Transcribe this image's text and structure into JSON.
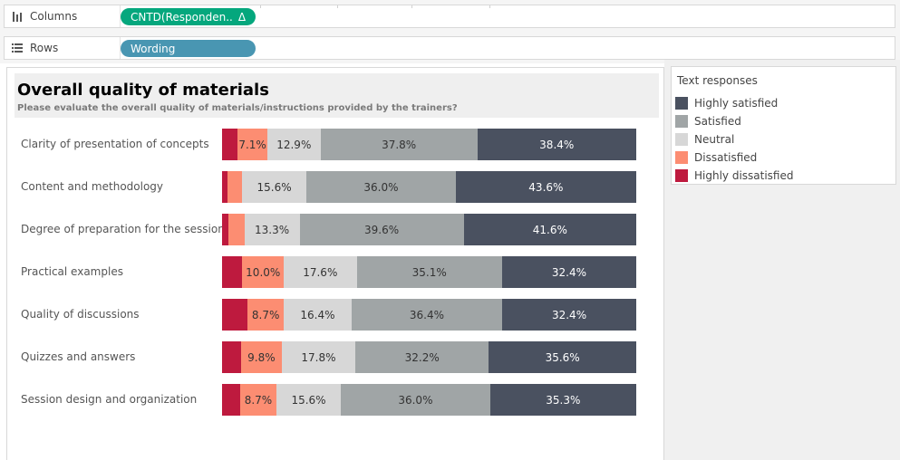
{
  "shelves": {
    "columns": {
      "label": "Columns",
      "icon": "columns-icon",
      "pill": "CNTD(Responden..",
      "pill_delta": "Δ",
      "pill_color": "#05a77d"
    },
    "rows": {
      "label": "Rows",
      "icon": "rows-icon",
      "pill": "Wording",
      "pill_color": "#4996b2"
    }
  },
  "viz": {
    "title": "Overall quality of materials",
    "subtitle": "Please evaluate the overall quality of materials/instructions provided by the trainers?"
  },
  "legend": {
    "title": "Text responses",
    "items": [
      {
        "label": "Highly satisfied",
        "color": "#4a5160"
      },
      {
        "label": "Satisfied",
        "color": "#a0a5a6"
      },
      {
        "label": "Neutral",
        "color": "#d7d7d7"
      },
      {
        "label": "Dissatisfied",
        "color": "#fc8d72"
      },
      {
        "label": "Highly dissatisfied",
        "color": "#be1a3e"
      }
    ]
  },
  "chart_data": {
    "type": "bar",
    "stacked": true,
    "orientation": "horizontal",
    "normalized_to_100": true,
    "title": "Overall quality of materials",
    "subtitle": "Please evaluate the overall quality of materials/instructions provided by the trainers?",
    "categories": [
      "Clarity of presentation of concepts",
      "Content and methodology",
      "Degree of preparation for the sessions",
      "Practical examples",
      "Quality of discussions",
      "Quizzes and answers",
      "Session design and organization"
    ],
    "series": [
      {
        "name": "Highly dissatisfied",
        "color": "#be1a3e",
        "values": [
          3.8,
          1.3,
          1.6,
          4.9,
          6.2,
          4.6,
          4.4
        ],
        "labels": [
          "",
          "",
          "",
          "",
          "",
          "",
          ""
        ]
      },
      {
        "name": "Dissatisfied",
        "color": "#fc8d72",
        "values": [
          7.1,
          3.5,
          3.8,
          10.0,
          8.7,
          9.8,
          8.7
        ],
        "labels": [
          "7.1%",
          "",
          "",
          "10.0%",
          "8.7%",
          "9.8%",
          "8.7%"
        ]
      },
      {
        "name": "Neutral",
        "color": "#d7d7d7",
        "values": [
          12.9,
          15.6,
          13.3,
          17.6,
          16.4,
          17.8,
          15.6
        ],
        "labels": [
          "12.9%",
          "15.6%",
          "13.3%",
          "17.6%",
          "16.4%",
          "17.8%",
          "15.6%"
        ]
      },
      {
        "name": "Satisfied",
        "color": "#a0a5a6",
        "values": [
          37.8,
          36.0,
          39.6,
          35.1,
          36.4,
          32.2,
          36.0
        ],
        "labels": [
          "37.8%",
          "36.0%",
          "39.6%",
          "35.1%",
          "36.4%",
          "32.2%",
          "36.0%"
        ]
      },
      {
        "name": "Highly satisfied",
        "color": "#4a5160",
        "values": [
          38.4,
          43.6,
          41.6,
          32.4,
          32.4,
          35.6,
          35.3
        ],
        "labels": [
          "38.4%",
          "43.6%",
          "41.6%",
          "32.4%",
          "32.4%",
          "35.6%",
          "35.3%"
        ]
      }
    ],
    "label_colors": {
      "Highly dissatisfied": "#ffffff",
      "Dissatisfied": "#333333",
      "Neutral": "#333333",
      "Satisfied": "#333333",
      "Highly satisfied": "#ffffff"
    },
    "xlim": [
      0,
      100
    ],
    "legend_title": "Text responses",
    "legend_position": "right"
  }
}
